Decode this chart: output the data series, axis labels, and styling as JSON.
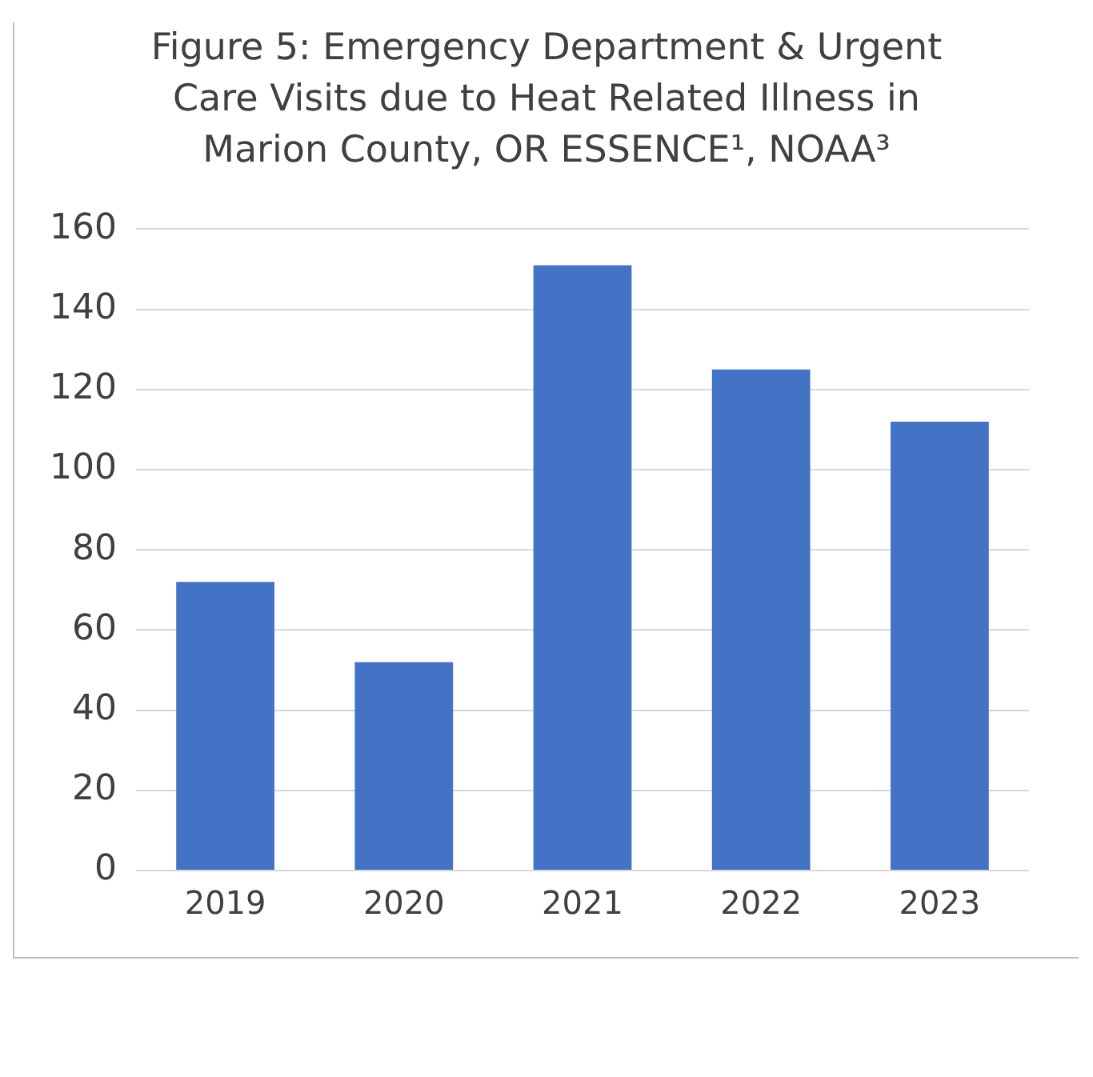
{
  "chart_data": {
    "type": "bar",
    "title": "Figure 5: Emergency Department & Urgent Care Visits due to Heat Related Illness in Marion County, OR ESSENCE¹, NOAA³",
    "categories": [
      "2019",
      "2020",
      "2021",
      "2022",
      "2023"
    ],
    "values": [
      72,
      52,
      151,
      125,
      112
    ],
    "color": "#4472c4",
    "ylim": [
      0,
      160
    ],
    "yticks": [
      0,
      20,
      40,
      60,
      80,
      100,
      120,
      140,
      160
    ],
    "grid": "y"
  }
}
